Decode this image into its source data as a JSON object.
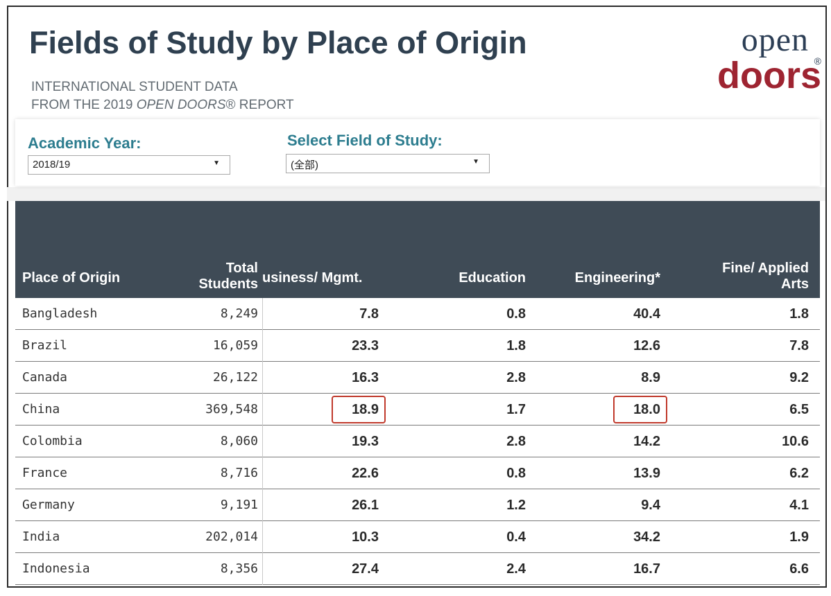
{
  "header": {
    "title": "Fields of Study by Place of Origin",
    "subtitle_line1": "INTERNATIONAL STUDENT DATA",
    "subtitle_line2_prefix": "FROM THE 2019 ",
    "subtitle_line2_italic": "OPEN DOORS",
    "subtitle_line2_suffix": "® REPORT"
  },
  "logo": {
    "line1": "open",
    "line2": "doors",
    "reg": "®"
  },
  "filters": {
    "academic_year_label": "Academic Year:",
    "academic_year_value": "2018/19",
    "field_label": "Select Field of Study:",
    "field_value": "(全部)"
  },
  "table": {
    "headers": {
      "place": "Place of Origin",
      "total_line1": "Total",
      "total_line2": "Students",
      "business": "usiness/ Mgmt.",
      "education": "Education",
      "engineering": "Engineering*",
      "fine_line1": "Fine/ Applied",
      "fine_line2": "Arts"
    },
    "rows": [
      {
        "country": "Bangladesh",
        "total": "8,249",
        "business": "7.8",
        "education": "0.8",
        "engineering": "40.4",
        "fine_arts": "1.8"
      },
      {
        "country": "Brazil",
        "total": "16,059",
        "business": "23.3",
        "education": "1.8",
        "engineering": "12.6",
        "fine_arts": "7.8"
      },
      {
        "country": "Canada",
        "total": "26,122",
        "business": "16.3",
        "education": "2.8",
        "engineering": "8.9",
        "fine_arts": "9.2"
      },
      {
        "country": "China",
        "total": "369,548",
        "business": "18.9",
        "education": "1.7",
        "engineering": "18.0",
        "fine_arts": "6.5"
      },
      {
        "country": "Colombia",
        "total": "8,060",
        "business": "19.3",
        "education": "2.8",
        "engineering": "14.2",
        "fine_arts": "10.6"
      },
      {
        "country": "France",
        "total": "8,716",
        "business": "22.6",
        "education": "0.8",
        "engineering": "13.9",
        "fine_arts": "6.2"
      },
      {
        "country": "Germany",
        "total": "9,191",
        "business": "26.1",
        "education": "1.2",
        "engineering": "9.4",
        "fine_arts": "4.1"
      },
      {
        "country": "India",
        "total": "202,014",
        "business": "10.3",
        "education": "0.4",
        "engineering": "34.2",
        "fine_arts": "1.9"
      },
      {
        "country": "Indonesia",
        "total": "8,356",
        "business": "27.4",
        "education": "2.4",
        "engineering": "16.7",
        "fine_arts": "6.6"
      }
    ],
    "highlight_color": "#c0392b",
    "header_bg": "#3f4b56"
  }
}
